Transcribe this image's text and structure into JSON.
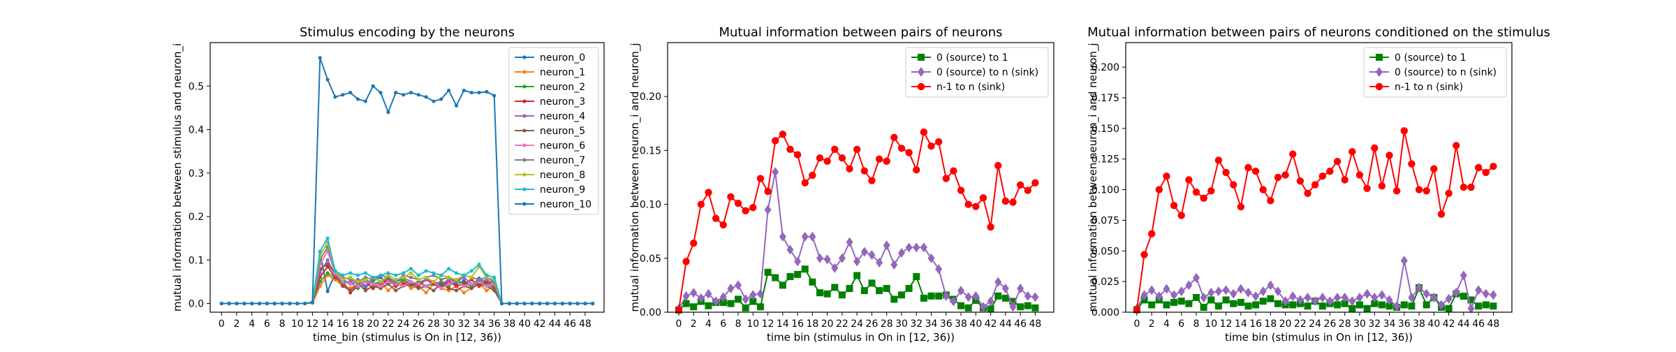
{
  "chart_data": [
    {
      "type": "line",
      "title": "Stimulus encoding by the neurons",
      "xlabel": "time_bin (stimulus is On in [12, 36))",
      "ylabel": "mutual information between stimulus and neuron_i",
      "xlim": [
        -1.5,
        50.5
      ],
      "ylim": [
        -0.02,
        0.6
      ],
      "xticks": [
        0,
        2,
        4,
        6,
        8,
        10,
        12,
        14,
        16,
        18,
        20,
        22,
        24,
        26,
        28,
        30,
        32,
        34,
        36,
        38,
        40,
        42,
        44,
        46,
        48
      ],
      "yticks": [
        0.0,
        0.1,
        0.2,
        0.3,
        0.4,
        0.5
      ],
      "ytick_format": 1,
      "grid": false,
      "legend_position": "top-right",
      "series": [
        {
          "name": "neuron_0",
          "color": "#1f77b4",
          "marker": "dot",
          "values": [
            0,
            0,
            0,
            0,
            0,
            0,
            0,
            0,
            0,
            0,
            0,
            0,
            0.003,
            0.118,
            0.028,
            0.07,
            0.055,
            0.045,
            0.05,
            0.036,
            0.052,
            0.06,
            0.045,
            0.05,
            0.057,
            0.04,
            0.048,
            0.055,
            0.05,
            0.042,
            0.05,
            0.045,
            0.052,
            0.04,
            0.058,
            0.046,
            0.052,
            0,
            0,
            0,
            0,
            0,
            0,
            0,
            0,
            0,
            0,
            0,
            0,
            0
          ]
        },
        {
          "name": "neuron_1",
          "color": "#ff7f0e",
          "marker": "dot",
          "values": [
            0,
            0,
            0,
            0,
            0,
            0,
            0,
            0,
            0,
            0,
            0,
            0,
            0.001,
            0.04,
            0.065,
            0.055,
            0.04,
            0.035,
            0.045,
            0.03,
            0.04,
            0.05,
            0.03,
            0.045,
            0.05,
            0.035,
            0.04,
            0.025,
            0.045,
            0.035,
            0.03,
            0.04,
            0.025,
            0.035,
            0.045,
            0.03,
            0.04,
            0,
            0,
            0,
            0,
            0,
            0,
            0,
            0,
            0,
            0,
            0,
            0,
            0
          ]
        },
        {
          "name": "neuron_2",
          "color": "#2ca02c",
          "marker": "dot",
          "values": [
            0,
            0,
            0,
            0,
            0,
            0,
            0,
            0,
            0,
            0,
            0,
            0,
            0.002,
            0.05,
            0.07,
            0.06,
            0.045,
            0.05,
            0.035,
            0.055,
            0.045,
            0.05,
            0.06,
            0.04,
            0.055,
            0.045,
            0.05,
            0.04,
            0.045,
            0.05,
            0.04,
            0.055,
            0.045,
            0.04,
            0.05,
            0.045,
            0.035,
            0,
            0,
            0,
            0,
            0,
            0,
            0,
            0,
            0,
            0,
            0,
            0,
            0
          ]
        },
        {
          "name": "neuron_3",
          "color": "#d62728",
          "marker": "dot",
          "values": [
            0,
            0,
            0,
            0,
            0,
            0,
            0,
            0,
            0,
            0,
            0,
            0,
            0.002,
            0.06,
            0.085,
            0.06,
            0.05,
            0.025,
            0.04,
            0.05,
            0.035,
            0.045,
            0.055,
            0.04,
            0.045,
            0.05,
            0.04,
            0.055,
            0.045,
            0.035,
            0.05,
            0.04,
            0.045,
            0.055,
            0.04,
            0.05,
            0.04,
            0,
            0,
            0,
            0,
            0,
            0,
            0,
            0,
            0,
            0,
            0,
            0,
            0
          ]
        },
        {
          "name": "neuron_4",
          "color": "#9467bd",
          "marker": "dot",
          "values": [
            0,
            0,
            0,
            0,
            0,
            0,
            0,
            0,
            0,
            0,
            0,
            0,
            0.002,
            0.07,
            0.1,
            0.065,
            0.045,
            0.05,
            0.055,
            0.04,
            0.06,
            0.05,
            0.045,
            0.055,
            0.06,
            0.05,
            0.045,
            0.055,
            0.05,
            0.045,
            0.055,
            0.05,
            0.06,
            0.045,
            0.05,
            0.055,
            0.045,
            0,
            0,
            0,
            0,
            0,
            0,
            0,
            0,
            0,
            0,
            0,
            0,
            0
          ]
        },
        {
          "name": "neuron_5",
          "color": "#8c564b",
          "marker": "dot",
          "values": [
            0,
            0,
            0,
            0,
            0,
            0,
            0,
            0,
            0,
            0,
            0,
            0,
            0.002,
            0.08,
            0.09,
            0.07,
            0.04,
            0.03,
            0.045,
            0.03,
            0.04,
            0.035,
            0.045,
            0.03,
            0.04,
            0.045,
            0.035,
            0.04,
            0.03,
            0.045,
            0.035,
            0.03,
            0.04,
            0.035,
            0.045,
            0.04,
            0.03,
            0,
            0,
            0,
            0,
            0,
            0,
            0,
            0,
            0,
            0,
            0,
            0,
            0
          ]
        },
        {
          "name": "neuron_6",
          "color": "#e377c2",
          "marker": "dot",
          "values": [
            0,
            0,
            0,
            0,
            0,
            0,
            0,
            0,
            0,
            0,
            0,
            0,
            0.002,
            0.09,
            0.12,
            0.07,
            0.05,
            0.045,
            0.04,
            0.05,
            0.045,
            0.04,
            0.05,
            0.045,
            0.04,
            0.05,
            0.045,
            0.04,
            0.05,
            0.035,
            0.045,
            0.05,
            0.04,
            0.045,
            0.05,
            0.04,
            0.045,
            0,
            0,
            0,
            0,
            0,
            0,
            0,
            0,
            0,
            0,
            0,
            0,
            0
          ]
        },
        {
          "name": "neuron_7",
          "color": "#7f7f7f",
          "marker": "dot",
          "values": [
            0,
            0,
            0,
            0,
            0,
            0,
            0,
            0,
            0,
            0,
            0,
            0,
            0.002,
            0.1,
            0.13,
            0.075,
            0.06,
            0.055,
            0.05,
            0.06,
            0.055,
            0.065,
            0.06,
            0.05,
            0.065,
            0.06,
            0.055,
            0.06,
            0.065,
            0.055,
            0.06,
            0.05,
            0.065,
            0.06,
            0.055,
            0.06,
            0.05,
            0,
            0,
            0,
            0,
            0,
            0,
            0,
            0,
            0,
            0,
            0,
            0,
            0
          ]
        },
        {
          "name": "neuron_8",
          "color": "#bcbd22",
          "marker": "dot",
          "values": [
            0,
            0,
            0,
            0,
            0,
            0,
            0,
            0,
            0,
            0,
            0,
            0,
            0.002,
            0.11,
            0.14,
            0.075,
            0.055,
            0.06,
            0.05,
            0.055,
            0.06,
            0.05,
            0.065,
            0.055,
            0.06,
            0.07,
            0.055,
            0.06,
            0.05,
            0.065,
            0.06,
            0.055,
            0.065,
            0.06,
            0.085,
            0.06,
            0.055,
            0,
            0,
            0,
            0,
            0,
            0,
            0,
            0,
            0,
            0,
            0,
            0,
            0
          ]
        },
        {
          "name": "neuron_9",
          "color": "#17becf",
          "marker": "dot",
          "values": [
            0,
            0,
            0,
            0,
            0,
            0,
            0,
            0,
            0,
            0,
            0,
            0,
            0.002,
            0.12,
            0.15,
            0.075,
            0.065,
            0.07,
            0.065,
            0.07,
            0.06,
            0.065,
            0.07,
            0.065,
            0.07,
            0.08,
            0.065,
            0.075,
            0.07,
            0.065,
            0.08,
            0.07,
            0.065,
            0.075,
            0.09,
            0.065,
            0.06,
            0,
            0,
            0,
            0,
            0,
            0,
            0,
            0,
            0,
            0,
            0,
            0,
            0
          ]
        },
        {
          "name": "neuron_10",
          "color": "#1f77b4",
          "marker": "dot",
          "values": [
            0,
            0,
            0,
            0,
            0,
            0,
            0,
            0,
            0,
            0,
            0,
            0,
            0.003,
            0.565,
            0.515,
            0.475,
            0.48,
            0.485,
            0.47,
            0.465,
            0.5,
            0.485,
            0.44,
            0.485,
            0.48,
            0.485,
            0.48,
            0.475,
            0.465,
            0.47,
            0.49,
            0.455,
            0.49,
            0.485,
            0.485,
            0.487,
            0.478,
            0,
            0,
            0,
            0,
            0,
            0,
            0,
            0,
            0,
            0,
            0,
            0,
            0
          ]
        }
      ]
    },
    {
      "type": "line",
      "title": "Mutual information between pairs of neurons",
      "xlabel": "time bin (stimulus in On in [12, 36))",
      "ylabel": "mutual information between neuron_i and neuron_j",
      "xlim": [
        -1.5,
        50.5
      ],
      "ylim": [
        0,
        0.25
      ],
      "xticks": [
        0,
        2,
        4,
        6,
        8,
        10,
        12,
        14,
        16,
        18,
        20,
        22,
        24,
        26,
        28,
        30,
        32,
        34,
        36,
        38,
        40,
        42,
        44,
        46,
        48
      ],
      "yticks": [
        0.0,
        0.05,
        0.1,
        0.15,
        0.2
      ],
      "ytick_format": 2,
      "grid": false,
      "legend_position": "top-right",
      "series": [
        {
          "name": "0 (source) to 1",
          "color": "#008000",
          "marker": "square",
          "values": [
            0.002,
            0.008,
            0.005,
            0.01,
            0.006,
            0.009,
            0.009,
            0.008,
            0.012,
            0.004,
            0.01,
            0.005,
            0.037,
            0.032,
            0.025,
            0.033,
            0.035,
            0.04,
            0.028,
            0.018,
            0.017,
            0.023,
            0.016,
            0.022,
            0.034,
            0.02,
            0.027,
            0.02,
            0.022,
            0.012,
            0.016,
            0.022,
            0.033,
            0.013,
            0.015,
            0.015,
            0.016,
            0.012,
            0.006,
            0.004,
            0.011,
            0.004,
            0.003,
            0.015,
            0.013,
            0.01,
            0.005,
            0.006,
            0.004
          ]
        },
        {
          "name": "0 (source) to n (sink)",
          "color": "#9467bd",
          "marker": "diamond",
          "values": [
            0.003,
            0.015,
            0.018,
            0.013,
            0.017,
            0.01,
            0.014,
            0.022,
            0.025,
            0.012,
            0.016,
            0.017,
            0.095,
            0.13,
            0.07,
            0.058,
            0.047,
            0.07,
            0.07,
            0.05,
            0.049,
            0.041,
            0.05,
            0.065,
            0.047,
            0.056,
            0.053,
            0.046,
            0.062,
            0.044,
            0.055,
            0.06,
            0.06,
            0.06,
            0.05,
            0.04,
            0.015,
            0.01,
            0.02,
            0.014,
            0.015,
            0.005,
            0.01,
            0.028,
            0.022,
            0.005,
            0.022,
            0.015,
            0.014
          ]
        },
        {
          "name": "n-1 to n (sink)",
          "color": "#ff0000",
          "marker": "circle",
          "values": [
            0.002,
            0.047,
            0.064,
            0.1,
            0.111,
            0.087,
            0.081,
            0.107,
            0.101,
            0.094,
            0.097,
            0.124,
            0.112,
            0.159,
            0.165,
            0.151,
            0.146,
            0.12,
            0.127,
            0.143,
            0.14,
            0.151,
            0.143,
            0.133,
            0.151,
            0.131,
            0.122,
            0.142,
            0.14,
            0.162,
            0.152,
            0.148,
            0.132,
            0.167,
            0.154,
            0.158,
            0.124,
            0.131,
            0.113,
            0.1,
            0.098,
            0.106,
            0.079,
            0.136,
            0.103,
            0.102,
            0.118,
            0.113,
            0.12
          ]
        }
      ]
    },
    {
      "type": "line",
      "title": "Mutual information between pairs of neurons conditioned on the stimulus",
      "xlabel": "time bin (stimulus in On in [12, 36))",
      "ylabel": "mutual information between neuron_i and neuron_j",
      "xlim": [
        -1.5,
        50.5
      ],
      "ylim": [
        0,
        0.22
      ],
      "xticks": [
        0,
        2,
        4,
        6,
        8,
        10,
        12,
        14,
        16,
        18,
        20,
        22,
        24,
        26,
        28,
        30,
        32,
        34,
        36,
        38,
        40,
        42,
        44,
        46,
        48
      ],
      "yticks": [
        0.0,
        0.025,
        0.05,
        0.075,
        0.1,
        0.125,
        0.15,
        0.175,
        0.2
      ],
      "ytick_format": 3,
      "grid": false,
      "legend_position": "top-right",
      "series": [
        {
          "name": "0 (source) to 1",
          "color": "#008000",
          "marker": "square",
          "values": [
            0.002,
            0.01,
            0.006,
            0.01,
            0.006,
            0.008,
            0.009,
            0.007,
            0.012,
            0.004,
            0.01,
            0.005,
            0.01,
            0.007,
            0.008,
            0.005,
            0.006,
            0.009,
            0.011,
            0.007,
            0.006,
            0.006,
            0.007,
            0.005,
            0.009,
            0.005,
            0.007,
            0.006,
            0.007,
            0.003,
            0.006,
            0.003,
            0.007,
            0.006,
            0.005,
            0.004,
            0.006,
            0.005,
            0.02,
            0.006,
            0.012,
            0.004,
            0.003,
            0.015,
            0.013,
            0.01,
            0.005,
            0.006,
            0.005
          ]
        },
        {
          "name": "0 (source) to n (sink)",
          "color": "#9467bd",
          "marker": "diamond",
          "values": [
            0.003,
            0.014,
            0.018,
            0.013,
            0.019,
            0.014,
            0.017,
            0.022,
            0.028,
            0.012,
            0.016,
            0.017,
            0.018,
            0.015,
            0.019,
            0.016,
            0.013,
            0.017,
            0.022,
            0.017,
            0.009,
            0.013,
            0.01,
            0.012,
            0.009,
            0.012,
            0.009,
            0.012,
            0.012,
            0.009,
            0.012,
            0.015,
            0.012,
            0.014,
            0.01,
            0.005,
            0.042,
            0.012,
            0.02,
            0.015,
            0.012,
            0.006,
            0.011,
            0.016,
            0.03,
            0.003,
            0.018,
            0.015,
            0.014
          ]
        },
        {
          "name": "n-1 to n (sink)",
          "color": "#ff0000",
          "marker": "circle",
          "values": [
            0.002,
            0.047,
            0.064,
            0.1,
            0.111,
            0.087,
            0.079,
            0.108,
            0.098,
            0.093,
            0.099,
            0.124,
            0.114,
            0.104,
            0.086,
            0.118,
            0.115,
            0.1,
            0.091,
            0.11,
            0.112,
            0.129,
            0.107,
            0.097,
            0.104,
            0.111,
            0.115,
            0.123,
            0.108,
            0.131,
            0.112,
            0.101,
            0.134,
            0.103,
            0.128,
            0.099,
            0.148,
            0.121,
            0.1,
            0.099,
            0.117,
            0.08,
            0.097,
            0.136,
            0.102,
            0.102,
            0.118,
            0.114,
            0.119
          ]
        }
      ]
    }
  ]
}
